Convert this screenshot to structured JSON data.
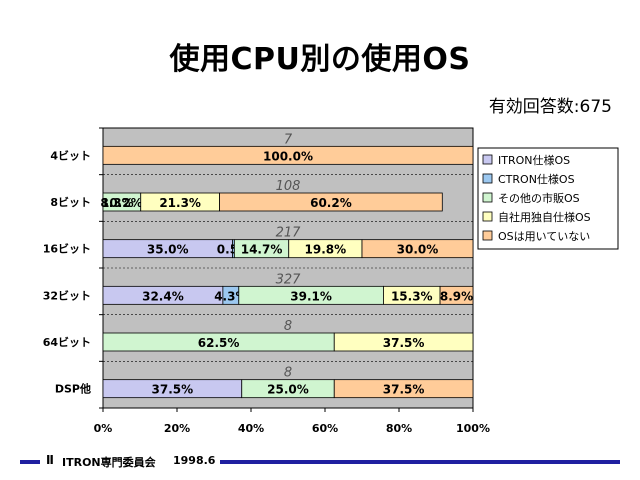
{
  "slide": {
    "title": "使用CPU別の使用OS",
    "answers_label": "有効回答数:675",
    "footer_org": "ITRON専門委員会",
    "footer_date": "1998.6"
  },
  "colors": {
    "plot_background": "#c0c0c0",
    "itron": "#c8c8f0",
    "ctron": "#9cc8f0",
    "other_commercial": "#d0f5d0",
    "in_house": "#ffffc0",
    "no_os": "#ffcc99",
    "footer_rule": "#2020a0"
  },
  "chart_data": {
    "type": "bar",
    "orientation": "horizontal",
    "stacked": "percent",
    "title": "",
    "xlabel": "",
    "ylabel": "",
    "xlim": [
      0,
      100
    ],
    "x_ticks": [
      "0%",
      "20%",
      "40%",
      "60%",
      "80%",
      "100%"
    ],
    "legend_position": "right",
    "categories": [
      "4ビット",
      "8ビット",
      "16ビット",
      "32ビット",
      "64ビット",
      "DSP他"
    ],
    "counts": [
      7,
      108,
      217,
      327,
      8,
      8
    ],
    "series": [
      {
        "name": "ITRON仕様OS",
        "color_key": "itron",
        "values": [
          0,
          0,
          35.0,
          32.4,
          0,
          37.5
        ],
        "labels": [
          "",
          "",
          "35.0%",
          "32.4%",
          "",
          "37.5%"
        ]
      },
      {
        "name": "CTRON仕様OS",
        "color_key": "ctron",
        "values": [
          0,
          0,
          0.5,
          4.3,
          0,
          0
        ],
        "labels": [
          "",
          "",
          "0.5%",
          "4.3%",
          "",
          ""
        ]
      },
      {
        "name": "その他の市販OS",
        "color_key": "other_commercial",
        "values": [
          0,
          10.2,
          14.7,
          39.1,
          62.5,
          25.0
        ],
        "labels": [
          "",
          "10.2%",
          "14.7%",
          "39.1%",
          "62.5%",
          "25.0%"
        ]
      },
      {
        "name": "自社用独自仕様OS",
        "color_key": "in_house",
        "values": [
          0,
          21.3,
          19.8,
          15.3,
          37.5,
          0
        ],
        "labels": [
          "",
          "21.3%",
          "19.8%",
          "15.3%",
          "37.5%",
          ""
        ]
      },
      {
        "name": "OSは用いていない",
        "color_key": "no_os",
        "values": [
          100.0,
          60.2,
          30.0,
          8.9,
          0,
          37.5
        ],
        "labels": [
          "100.0%",
          "60.2%",
          "30.0%",
          "8.9%",
          "",
          "37.5%"
        ]
      }
    ],
    "extra_labels": [
      {
        "category": "8ビット",
        "text": "8.3%"
      }
    ]
  }
}
